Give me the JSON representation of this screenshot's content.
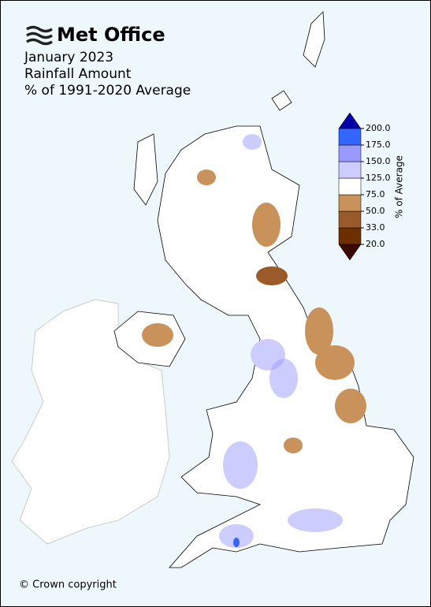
{
  "logo": "Met Office",
  "title": [
    "January 2023",
    "Rainfall Amount",
    "% of 1991-2020 Average"
  ],
  "colorbar": {
    "label": "% of Average",
    "ticks": [
      {
        "value": 20,
        "label": "20.0"
      },
      {
        "value": 33,
        "label": "33.0"
      },
      {
        "value": 50,
        "label": "50.0"
      },
      {
        "value": 75,
        "label": "75.0"
      },
      {
        "value": 125,
        "label": "125.0"
      },
      {
        "value": 150,
        "label": "150.0"
      },
      {
        "value": 175,
        "label": "175.0"
      },
      {
        "value": 200,
        "label": "200.0"
      }
    ],
    "colors": [
      "#6b2f00",
      "#9a5a2a",
      "#c8925a",
      "#ffffff",
      "#ccccff",
      "#9999ff",
      "#3366ff"
    ],
    "under_color": "#3a0a00",
    "over_color": "#0000aa"
  },
  "copyright": "© Crown copyright"
}
